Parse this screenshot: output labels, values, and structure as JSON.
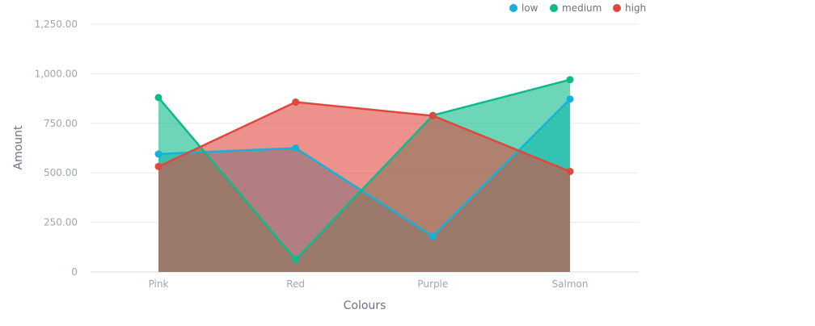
{
  "chart_data": {
    "type": "area",
    "xlabel": "Colours",
    "ylabel": "Amount",
    "categories": [
      "Pink",
      "Red",
      "Purple",
      "Salmon"
    ],
    "ylim": [
      0,
      1250
    ],
    "yticks": [
      0,
      250,
      500,
      750,
      1000,
      1250
    ],
    "ytick_labels": [
      "0",
      "250.00",
      "500.00",
      "750.00",
      "1,000.00",
      "1,250.00"
    ],
    "grid": true,
    "legend_position": "top-right",
    "series": [
      {
        "name": "low",
        "color": "#14b1d8",
        "values": [
          595,
          625,
          180,
          872
        ]
      },
      {
        "name": "medium",
        "color": "#0cba8a",
        "values": [
          880,
          63,
          790,
          970
        ]
      },
      {
        "name": "high",
        "color": "#e0483d",
        "values": [
          532,
          857,
          788,
          507
        ]
      }
    ]
  }
}
